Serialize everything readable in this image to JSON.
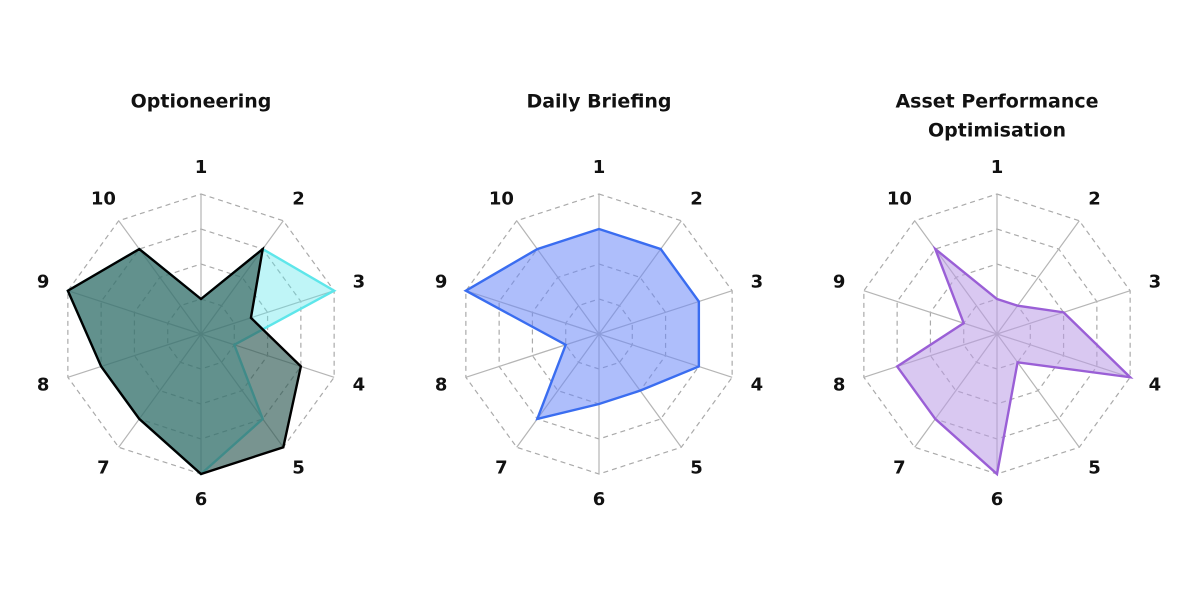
{
  "chart_data": [
    {
      "type": "radar",
      "title_lines": [
        "Optioneering"
      ],
      "axes": [
        "1",
        "2",
        "3",
        "4",
        "5",
        "6",
        "7",
        "8",
        "9",
        "10"
      ],
      "max": 4,
      "rings": 4,
      "series": [
        {
          "values": [
            1,
            3,
            4,
            1,
            3,
            4,
            3,
            3,
            4,
            3
          ],
          "fill": "#5ee6ea",
          "fill_opacity": 0.4,
          "stroke": "#5ee6ea"
        },
        {
          "values": [
            1,
            3,
            1.5,
            3,
            4,
            4,
            3,
            3,
            4,
            3
          ],
          "fill": "#2f5a55",
          "fill_opacity": 0.65,
          "stroke": "#000000"
        }
      ]
    },
    {
      "type": "radar",
      "title_lines": [
        "Daily Briefing"
      ],
      "axes": [
        "1",
        "2",
        "3",
        "4",
        "5",
        "6",
        "7",
        "8",
        "9",
        "10"
      ],
      "max": 4,
      "rings": 4,
      "series": [
        {
          "values": [
            3,
            3,
            3,
            3,
            2,
            2,
            3,
            1,
            4,
            3
          ],
          "fill": "#6b88f7",
          "fill_opacity": 0.55,
          "stroke": "#3a6df0"
        }
      ]
    },
    {
      "type": "radar",
      "title_lines": [
        "Asset Performance",
        "Optimisation"
      ],
      "axes": [
        "1",
        "2",
        "3",
        "4",
        "5",
        "6",
        "7",
        "8",
        "9",
        "10"
      ],
      "max": 4,
      "rings": 4,
      "series": [
        {
          "values": [
            1,
            1,
            2,
            4,
            1,
            4,
            3,
            3,
            1,
            3
          ],
          "fill": "#b99be6",
          "fill_opacity": 0.55,
          "stroke": "#9a5fd6"
        }
      ]
    }
  ]
}
